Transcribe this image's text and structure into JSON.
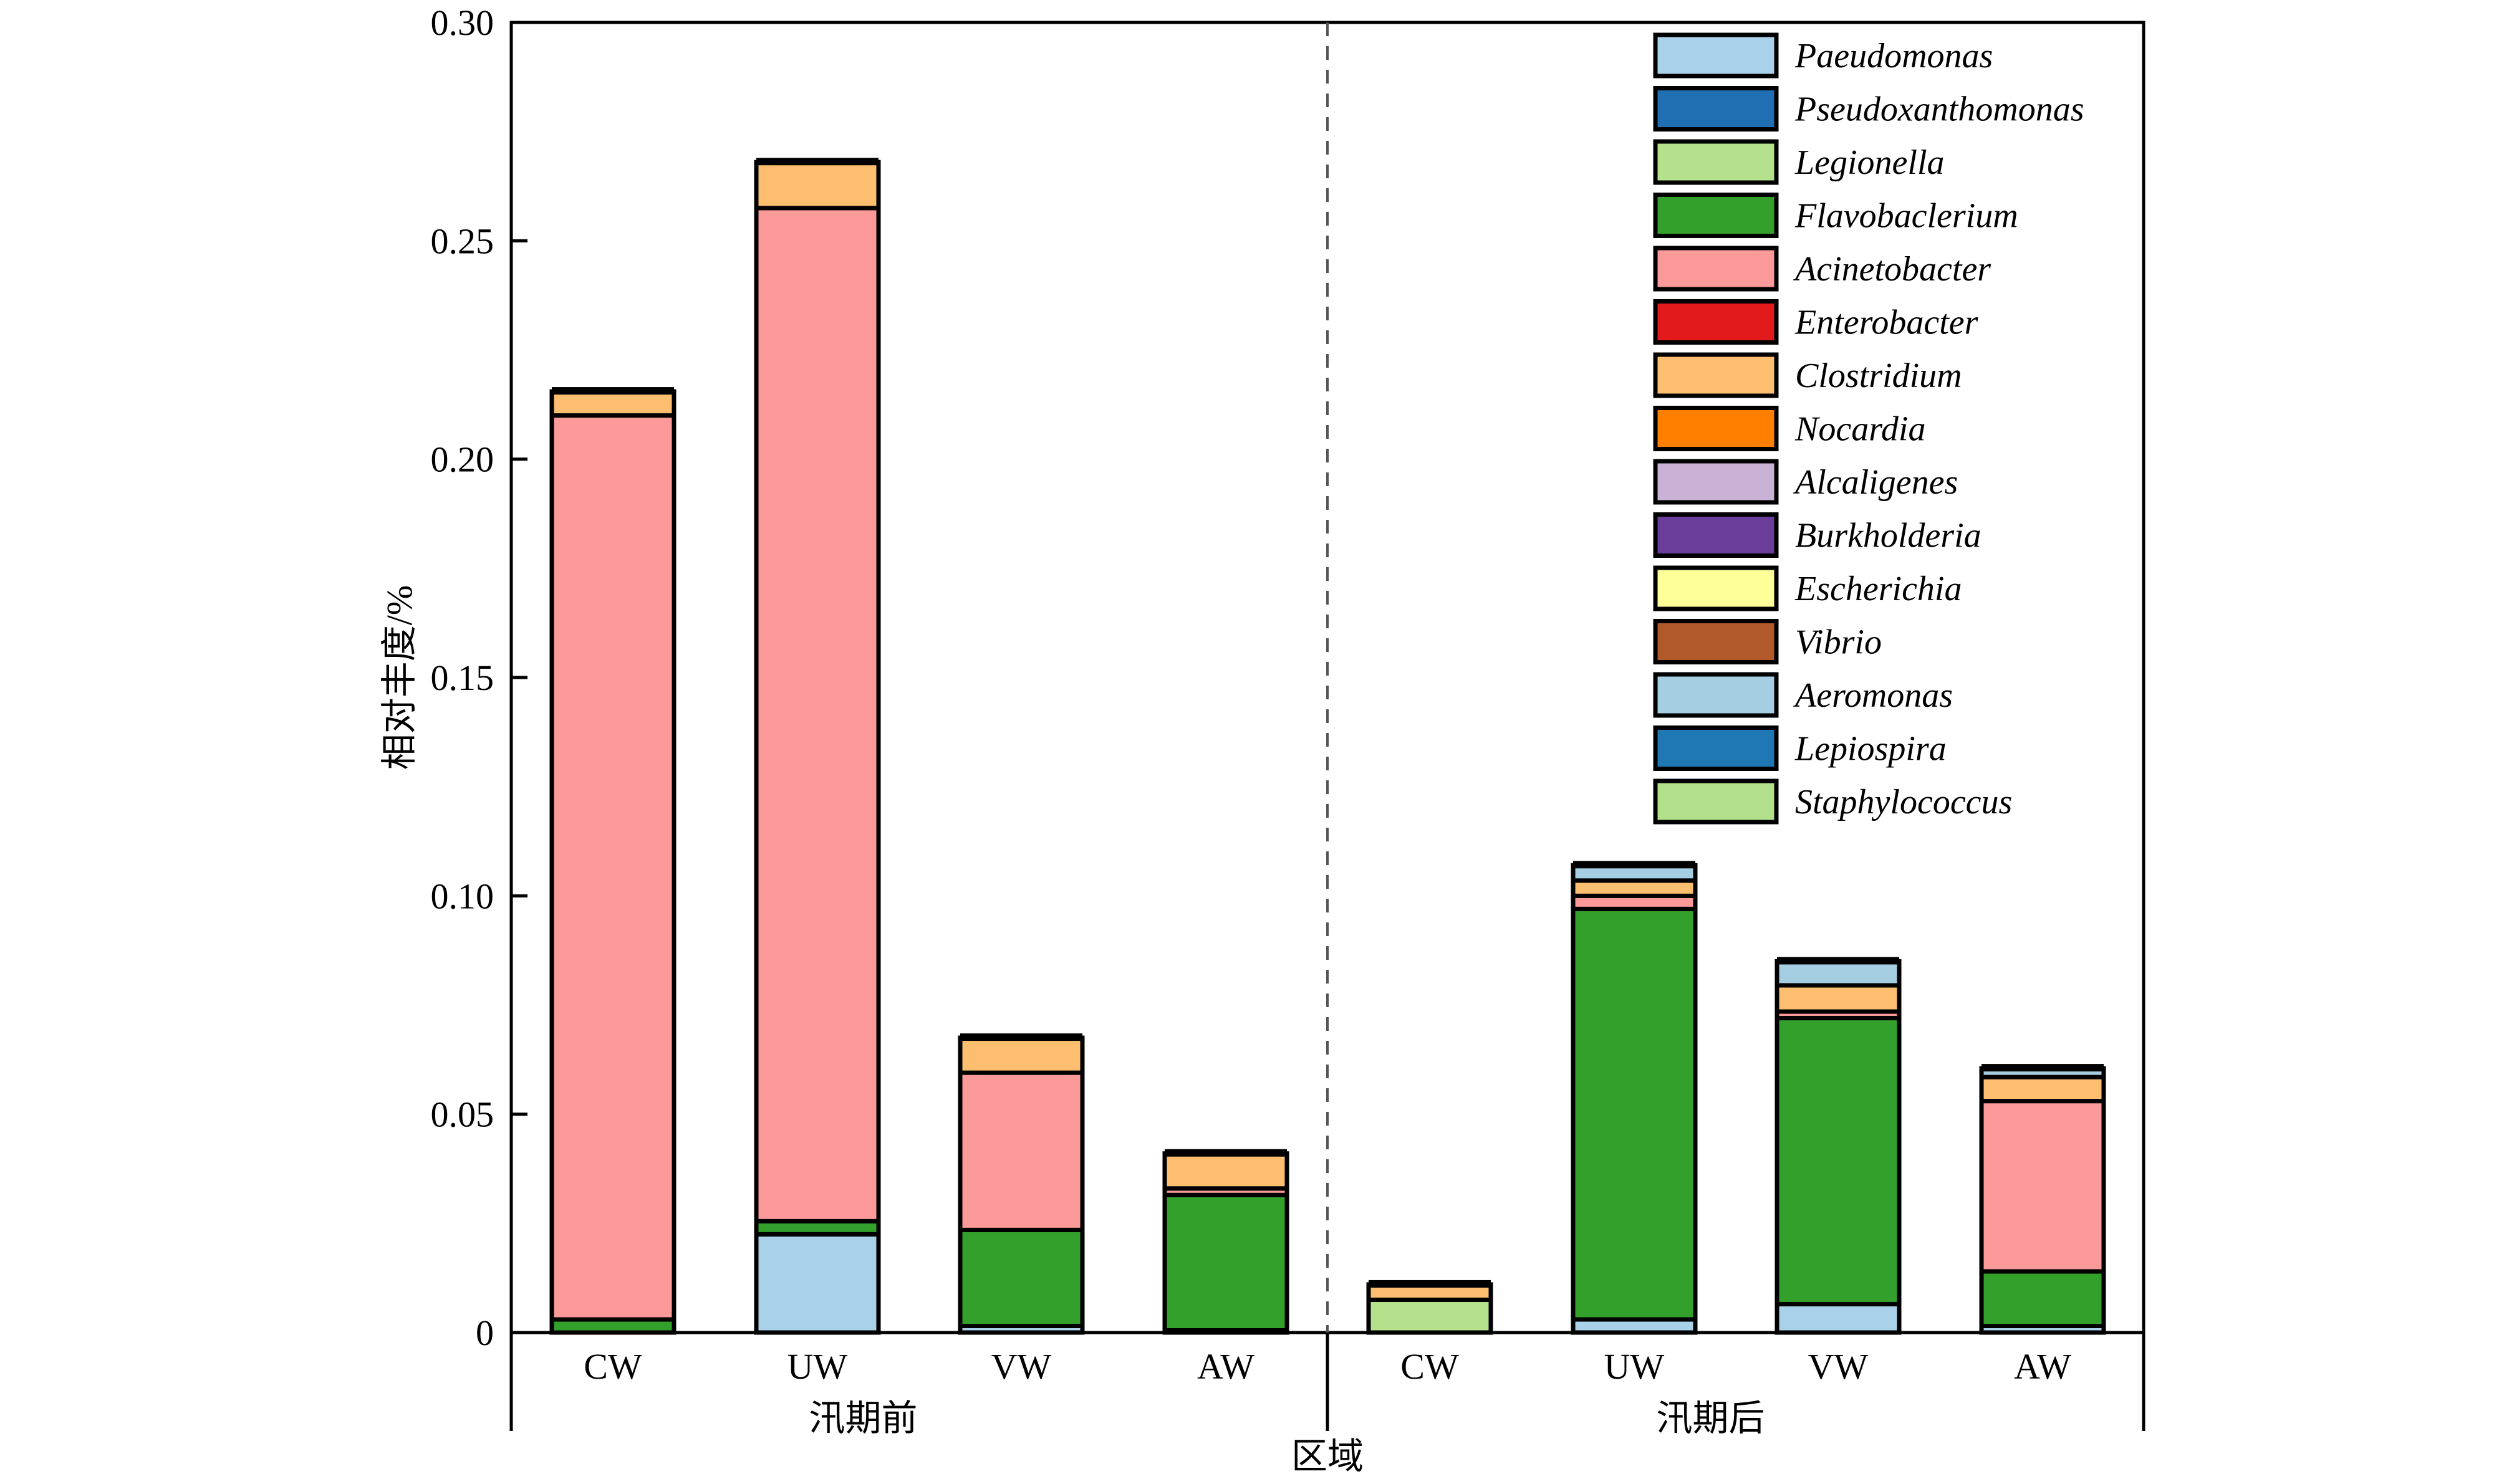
{
  "chart_data": {
    "type": "bar",
    "stacked": true,
    "ylabel": "相对丰度/%",
    "xlabel": "区域",
    "ylim": [
      0,
      0.3
    ],
    "yticks": [
      {
        "value": 0,
        "label": "0"
      },
      {
        "value": 0.05,
        "label": "0.05"
      },
      {
        "value": 0.1,
        "label": "0.10"
      },
      {
        "value": 0.15,
        "label": "0.15"
      },
      {
        "value": 0.2,
        "label": "0.20"
      },
      {
        "value": 0.25,
        "label": "0.25"
      },
      {
        "value": 0.3,
        "label": "0.30"
      }
    ],
    "groups": [
      {
        "name": "汛期前",
        "categories": [
          "CW",
          "UW",
          "VW",
          "AW"
        ]
      },
      {
        "name": "汛期后",
        "categories": [
          "CW",
          "UW",
          "VW",
          "AW"
        ]
      }
    ],
    "categories": [
      "CW",
      "UW",
      "VW",
      "AW",
      "CW",
      "UW",
      "VW",
      "AW"
    ],
    "legend_position": "top-right",
    "divider": "dashed vertical line between groups",
    "series": [
      {
        "name": "Paeudomonas",
        "color": "#a9d1ea",
        "values": [
          0.0,
          0.0225,
          0.0015,
          0.0005,
          0.0,
          0.003,
          0.0065,
          0.0015
        ]
      },
      {
        "name": "Pseudoxanthomonas",
        "color": "#1f6fb2",
        "values": [
          0.0,
          0.0,
          0.0,
          0.0,
          0.0,
          0.0,
          0.0,
          0.0
        ]
      },
      {
        "name": "Legionella",
        "color": "#b5e08c",
        "values": [
          0.0,
          0.0,
          0.0,
          0.0,
          0.0075,
          0.0,
          0.0,
          0.0
        ]
      },
      {
        "name": "Flavobaclerium",
        "color": "#33a02c",
        "values": [
          0.003,
          0.003,
          0.022,
          0.031,
          0.0,
          0.094,
          0.0655,
          0.0125
        ]
      },
      {
        "name": "Acinetobacter",
        "color": "#fb9a99",
        "values": [
          0.207,
          0.232,
          0.036,
          0.0015,
          0.0,
          0.003,
          0.0015,
          0.039
        ]
      },
      {
        "name": "Enterobacter",
        "color": "#e31a1c",
        "values": [
          0.0,
          0.0,
          0.0,
          0.0,
          0.0,
          0.0,
          0.0,
          0.0
        ]
      },
      {
        "name": "Clostridium",
        "color": "#fdbf6f",
        "values": [
          0.0055,
          0.0105,
          0.008,
          0.008,
          0.0035,
          0.0035,
          0.006,
          0.0055
        ]
      },
      {
        "name": "Nocardia",
        "color": "#ff7f00",
        "values": [
          0.0,
          0.0,
          0.0,
          0.0,
          0.0,
          0.0,
          0.0,
          0.0
        ]
      },
      {
        "name": "Alcaligenes",
        "color": "#cab2d6",
        "values": [
          0.0,
          0.0,
          0.0,
          0.0,
          0.0,
          0.0,
          0.0,
          0.0
        ]
      },
      {
        "name": "Burkholderia",
        "color": "#6a3d9a",
        "values": [
          0.0,
          0.0,
          0.0,
          0.0,
          0.0,
          0.0,
          0.0,
          0.0
        ]
      },
      {
        "name": "Escherichia",
        "color": "#ffff99",
        "values": [
          0.0,
          0.0,
          0.0,
          0.0,
          0.0,
          0.0,
          0.0,
          0.0
        ]
      },
      {
        "name": "Vibrio",
        "color": "#b15928",
        "values": [
          0.0,
          0.0,
          0.0,
          0.0,
          0.0,
          0.0,
          0.0,
          0.0
        ]
      },
      {
        "name": "Aeromonas",
        "color": "#a6cee3",
        "values": [
          0.0,
          0.0,
          0.0,
          0.0,
          0.0,
          0.0035,
          0.0055,
          0.002
        ]
      },
      {
        "name": "Lepiospira",
        "color": "#1f78b4",
        "values": [
          0.0,
          0.0,
          0.0,
          0.0,
          0.0,
          0.0,
          0.0,
          0.0
        ]
      },
      {
        "name": "Staphylococcus",
        "color": "#b2df8a",
        "values": [
          0.0,
          0.0,
          0.0,
          0.0,
          0.0,
          0.0,
          0.0,
          0.0
        ]
      }
    ]
  }
}
